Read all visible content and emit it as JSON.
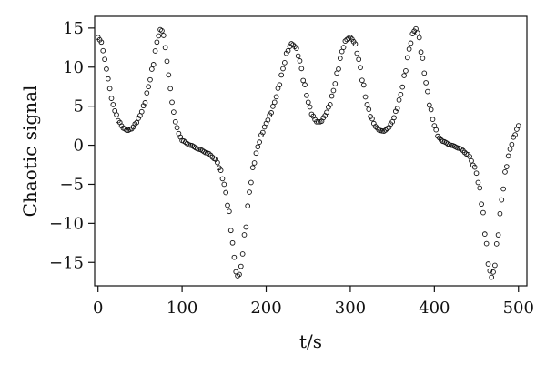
{
  "chart_data": {
    "type": "scatter",
    "title": "",
    "xlabel": "t/s",
    "ylabel": "Chaotic signal",
    "xlim": [
      -4,
      510
    ],
    "ylim": [
      -18,
      16.5
    ],
    "xticks": [
      0,
      100,
      200,
      300,
      400,
      500
    ],
    "yticks": [
      15,
      10,
      5,
      0,
      -5,
      -10,
      -15
    ],
    "marker": "open-circle",
    "marker_color": "#111111",
    "grid": false,
    "legend": "none",
    "keypoints": [
      [
        0,
        13.8
      ],
      [
        4,
        13.2
      ],
      [
        8,
        11.0
      ],
      [
        12,
        8.5
      ],
      [
        16,
        6.0
      ],
      [
        20,
        4.4
      ],
      [
        25,
        3.0
      ],
      [
        30,
        2.2
      ],
      [
        35,
        1.9
      ],
      [
        40,
        2.1
      ],
      [
        45,
        2.8
      ],
      [
        50,
        3.8
      ],
      [
        55,
        5.2
      ],
      [
        60,
        7.5
      ],
      [
        65,
        10.0
      ],
      [
        70,
        13.2
      ],
      [
        74,
        14.8
      ],
      [
        77,
        14.6
      ],
      [
        80,
        12.5
      ],
      [
        84,
        9.0
      ],
      [
        88,
        5.5
      ],
      [
        92,
        3.0
      ],
      [
        96,
        1.5
      ],
      [
        100,
        0.6
      ],
      [
        110,
        0.0
      ],
      [
        120,
        -0.5
      ],
      [
        130,
        -1.0
      ],
      [
        140,
        -1.8
      ],
      [
        145,
        -3.0
      ],
      [
        150,
        -5.0
      ],
      [
        155,
        -8.0
      ],
      [
        160,
        -12.5
      ],
      [
        164,
        -16.2
      ],
      [
        167,
        -16.9
      ],
      [
        170,
        -15.5
      ],
      [
        175,
        -11.0
      ],
      [
        180,
        -6.0
      ],
      [
        185,
        -2.5
      ],
      [
        190,
        -0.2
      ],
      [
        195,
        1.5
      ],
      [
        200,
        2.8
      ],
      [
        205,
        4.0
      ],
      [
        210,
        5.5
      ],
      [
        215,
        7.5
      ],
      [
        220,
        9.8
      ],
      [
        225,
        12.0
      ],
      [
        230,
        13.0
      ],
      [
        235,
        12.6
      ],
      [
        240,
        10.8
      ],
      [
        245,
        8.0
      ],
      [
        250,
        5.5
      ],
      [
        255,
        3.8
      ],
      [
        260,
        3.0
      ],
      [
        265,
        3.0
      ],
      [
        270,
        3.8
      ],
      [
        275,
        5.0
      ],
      [
        280,
        7.0
      ],
      [
        285,
        9.5
      ],
      [
        290,
        12.0
      ],
      [
        295,
        13.5
      ],
      [
        300,
        13.8
      ],
      [
        305,
        13.2
      ],
      [
        310,
        11.0
      ],
      [
        315,
        8.0
      ],
      [
        320,
        5.2
      ],
      [
        325,
        3.5
      ],
      [
        330,
        2.4
      ],
      [
        335,
        1.9
      ],
      [
        340,
        1.8
      ],
      [
        345,
        2.2
      ],
      [
        350,
        3.0
      ],
      [
        355,
        4.5
      ],
      [
        360,
        6.5
      ],
      [
        365,
        9.2
      ],
      [
        370,
        12.3
      ],
      [
        375,
        14.5
      ],
      [
        378,
        14.9
      ],
      [
        381,
        14.2
      ],
      [
        385,
        11.5
      ],
      [
        390,
        8.0
      ],
      [
        395,
        4.8
      ],
      [
        400,
        2.5
      ],
      [
        405,
        1.0
      ],
      [
        410,
        0.5
      ],
      [
        420,
        0.0
      ],
      [
        430,
        -0.4
      ],
      [
        440,
        -1.2
      ],
      [
        448,
        -2.8
      ],
      [
        453,
        -5.0
      ],
      [
        457,
        -8.0
      ],
      [
        461,
        -12.0
      ],
      [
        465,
        -15.8
      ],
      [
        468,
        -16.9
      ],
      [
        471,
        -16.0
      ],
      [
        475,
        -12.0
      ],
      [
        480,
        -7.0
      ],
      [
        485,
        -3.0
      ],
      [
        490,
        -0.5
      ],
      [
        495,
        1.2
      ],
      [
        500,
        2.5
      ]
    ]
  }
}
